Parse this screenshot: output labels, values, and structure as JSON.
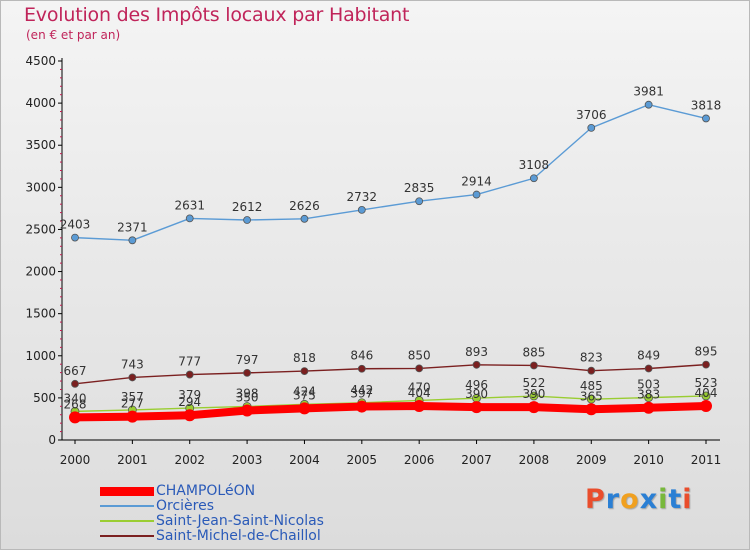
{
  "title": "Evolution des Impôts locaux par Habitant",
  "subtitle": "(en € et par an)",
  "logo": {
    "text": "Proxiti",
    "colors": [
      "#e94d2c",
      "#2a7fd4",
      "#f0a020",
      "#2a7fd4",
      "#78b83c",
      "#2a7fd4",
      "#e94d2c"
    ]
  },
  "chart_data": {
    "type": "line",
    "title": "Evolution des Impôts locaux par Habitant",
    "subtitle": "(en € et par an)",
    "x": [
      "2000",
      "2001",
      "2002",
      "2003",
      "2004",
      "2005",
      "2006",
      "2007",
      "2008",
      "2009",
      "2010",
      "2011"
    ],
    "ylim": [
      0,
      4500
    ],
    "yticks": [
      "0",
      "500",
      "1000",
      "1500",
      "2000",
      "2500",
      "3000",
      "3500",
      "4000",
      "4500"
    ],
    "grid": false,
    "legend_position": "bottom-left",
    "series": [
      {
        "name": "CHAMPOLéON",
        "color": "#ff0000",
        "values": [
          268,
          277,
          294,
          350,
          375,
          397,
          404,
          390,
          390,
          365,
          383,
          404
        ],
        "labels": [
          "268",
          "277",
          "294",
          "350",
          "375",
          "397",
          "404",
          "390",
          "390",
          "365",
          "383",
          "404"
        ]
      },
      {
        "name": "Orcières",
        "color": "#5b9bd5",
        "values": [
          2403,
          2371,
          2631,
          2612,
          2626,
          2732,
          2835,
          2914,
          3108,
          3706,
          3981,
          3818
        ],
        "labels": [
          "2403",
          "2371",
          "2631",
          "2612",
          "2626",
          "2732",
          "2835",
          "2914",
          "3108",
          "3706",
          "3981",
          "3818"
        ]
      },
      {
        "name": "Saint-Jean-Saint-Nicolas",
        "color": "#9acd32",
        "values": [
          340,
          357,
          379,
          398,
          424,
          442,
          470,
          496,
          522,
          485,
          503,
          523
        ],
        "labels": [
          "340",
          "357",
          "379",
          "398",
          "424",
          "442",
          "470",
          "496",
          "522",
          "485",
          "503",
          "523"
        ]
      },
      {
        "name": "Saint-Michel-de-Chaillol",
        "color": "#7b2020",
        "values": [
          667,
          743,
          777,
          797,
          818,
          846,
          850,
          893,
          885,
          823,
          849,
          895
        ],
        "labels": [
          "667",
          "743",
          "777",
          "797",
          "818",
          "846",
          "850",
          "893",
          "885",
          "823",
          "849",
          "895"
        ]
      }
    ]
  }
}
